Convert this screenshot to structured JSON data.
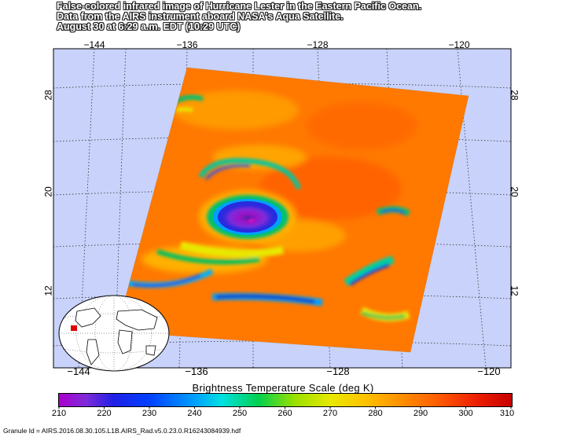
{
  "caption": {
    "line1": "False-colored infrared image of Hurricane Lester in the Eastern Pacific Ocean.",
    "line2": "Data from the AIRS instrument aboard NASA's Aqua Satellite.",
    "line3": "August 30 at 6:29 a.m. EDT (10:29 UTC)"
  },
  "map": {
    "longitude_labels_top": [
      "−144",
      "−136",
      "−128",
      "−120"
    ],
    "longitude_labels_bottom": [
      "−144",
      "−136",
      "−128",
      "−120"
    ],
    "latitude_labels_left": [
      "28",
      "20",
      "12"
    ],
    "latitude_labels_right": [
      "28",
      "20",
      "12"
    ],
    "background_color": "#c8d2fa",
    "grid_style": "dotted"
  },
  "colorbar": {
    "title": "Brightness Temperature Scale (deg K)",
    "ticks": [
      "210",
      "220",
      "230",
      "240",
      "250",
      "260",
      "270",
      "280",
      "290",
      "300",
      "310"
    ],
    "min": 210,
    "max": 310,
    "colors": [
      "#aa00cc",
      "#2020e6",
      "#00a0ff",
      "#00d050",
      "#e8e800",
      "#ff8c00",
      "#c80000"
    ]
  },
  "granule": {
    "label": "Granule Id = AIRS.2016.08.30.105.L1B.AIRS_Rad.v5.0.23.0.R16243084939.hdf"
  }
}
